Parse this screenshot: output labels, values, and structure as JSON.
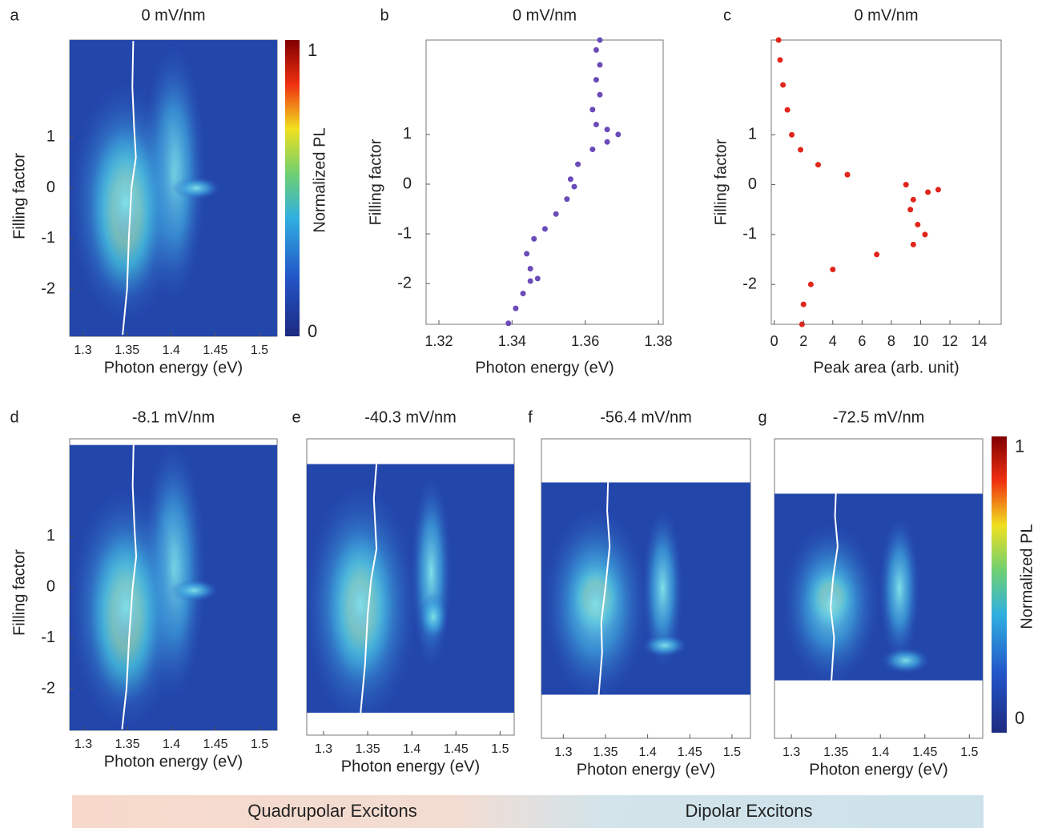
{
  "chart_data": [
    {
      "type": "heatmap",
      "label": "a",
      "title": "0 mV/nm",
      "xlabel": "Photon energy (eV)",
      "ylabel": "Filling factor",
      "xlim": [
        1.285,
        1.52
      ],
      "ylim": [
        -2.93,
        2.92
      ],
      "xticks": [
        1.3,
        1.35,
        1.4,
        1.45,
        1.5
      ],
      "yticks": [
        -2,
        -1,
        0,
        1
      ],
      "extent": [
        -2.93,
        2.92
      ],
      "trace": {
        "x": [
          1.345,
          1.35,
          1.352,
          1.355,
          1.36,
          1.358,
          1.356,
          1.357
        ],
        "y": [
          -2.9,
          -2,
          -1,
          0,
          0.6,
          1.2,
          2,
          2.9
        ]
      },
      "colorbar": {
        "label": "Normalized PL",
        "lim": [
          -0.014,
          1.04
        ],
        "ticks": [
          0,
          1
        ]
      }
    },
    {
      "type": "scatter",
      "label": "b",
      "title": "0 mV/nm",
      "xlabel": "Photon energy (eV)",
      "ylabel": "Filling factor",
      "color": "#6a4bb8",
      "xlim": [
        1.3165,
        1.3813
      ],
      "ylim": [
        -2.82,
        2.9
      ],
      "xticks": [
        1.32,
        1.34,
        1.36,
        1.38
      ],
      "yticks": [
        -2,
        -1,
        0,
        1
      ],
      "x": [
        1.339,
        1.341,
        1.343,
        1.345,
        1.347,
        1.345,
        1.344,
        1.346,
        1.349,
        1.352,
        1.355,
        1.357,
        1.356,
        1.358,
        1.362,
        1.366,
        1.369,
        1.366,
        1.363,
        1.362,
        1.364,
        1.363,
        1.364,
        1.363,
        1.364
      ],
      "values": [
        -2.8,
        -2.5,
        -2.2,
        -1.95,
        -1.9,
        -1.7,
        -1.4,
        -1.1,
        -0.9,
        -0.6,
        -0.3,
        -0.05,
        0.1,
        0.4,
        0.7,
        0.85,
        1.0,
        1.1,
        1.2,
        1.5,
        1.8,
        2.1,
        2.4,
        2.7,
        2.9
      ]
    },
    {
      "type": "scatter",
      "label": "c",
      "title": "0 mV/nm",
      "xlabel": "Peak area (arb. unit)",
      "ylabel": "Filling factor",
      "color": "#e0251b",
      "xlim": [
        -0.2,
        15.5
      ],
      "ylim": [
        -2.8,
        2.9
      ],
      "xticks": [
        0,
        2,
        4,
        6,
        8,
        10,
        12,
        14
      ],
      "yticks": [
        -2,
        -1,
        0,
        1
      ],
      "x": [
        1.9,
        2.0,
        2.5,
        4,
        7,
        9.5,
        10.3,
        9.8,
        9.3,
        9.5,
        10.5,
        11.2,
        9,
        5,
        3,
        1.8,
        1.2,
        0.9,
        0.6,
        0.4,
        0.3
      ],
      "values": [
        -2.8,
        -2.4,
        -2.0,
        -1.7,
        -1.4,
        -1.2,
        -1.0,
        -0.8,
        -0.5,
        -0.3,
        -0.15,
        -0.1,
        0.0,
        0.2,
        0.4,
        0.7,
        1.0,
        1.5,
        2.0,
        2.5,
        2.9
      ]
    },
    {
      "type": "heatmap",
      "label": "d",
      "title": "-8.1 mV/nm",
      "xlabel": "Photon energy (eV)",
      "ylabel": "Filling factor",
      "xlim": [
        1.2845,
        1.52
      ],
      "ylim": [
        -2.82,
        2.92
      ],
      "xticks": [
        1.3,
        1.35,
        1.4,
        1.45,
        1.5
      ],
      "yticks": [
        -2,
        -1,
        0,
        1
      ],
      "extent": [
        -2.82,
        2.8
      ],
      "trace": {
        "x": [
          1.344,
          1.349,
          1.352,
          1.356,
          1.36,
          1.358,
          1.356,
          1.357
        ],
        "y": [
          -2.8,
          -2,
          -1,
          0,
          0.6,
          1.2,
          2,
          2.8
        ]
      }
    },
    {
      "type": "heatmap",
      "label": "e",
      "title": "-40.3 mV/nm",
      "xlabel": "Photon energy (eV)",
      "xlim": [
        1.281,
        1.516
      ],
      "ylim": [
        -2.89,
        2.98
      ],
      "xticks": [
        1.3,
        1.35,
        1.4,
        1.45,
        1.5
      ],
      "extent": [
        -2.45,
        2.48
      ],
      "trace": {
        "x": [
          1.342,
          1.347,
          1.35,
          1.354,
          1.36,
          1.357,
          1.36
        ],
        "y": [
          -2.45,
          -1.5,
          -0.5,
          0.2,
          0.8,
          1.8,
          2.48
        ]
      }
    },
    {
      "type": "heatmap",
      "label": "f",
      "title": "-56.4 mV/nm",
      "xlabel": "Photon energy (eV)",
      "xlim": [
        1.274,
        1.522
      ],
      "ylim": [
        -2.99,
        2.92
      ],
      "xticks": [
        1.3,
        1.35,
        1.4,
        1.45,
        1.5
      ],
      "extent": [
        -2.13,
        2.06
      ],
      "trace": {
        "x": [
          1.342,
          1.346,
          1.345,
          1.35,
          1.355,
          1.352,
          1.353
        ],
        "y": [
          -2.13,
          -1.3,
          -0.7,
          0,
          0.8,
          1.5,
          2.06
        ]
      }
    },
    {
      "type": "heatmap",
      "label": "g",
      "title": "-72.5 mV/nm",
      "xlabel": "Photon energy (eV)",
      "xlim": [
        1.281,
        1.515
      ],
      "ylim": [
        -2.98,
        2.92
      ],
      "xticks": [
        1.3,
        1.35,
        1.4,
        1.45,
        1.5
      ],
      "extent": [
        -1.84,
        1.84
      ],
      "trace": {
        "x": [
          1.345,
          1.348,
          1.344,
          1.347,
          1.352,
          1.349,
          1.35
        ],
        "y": [
          -1.84,
          -1.0,
          -0.4,
          0.2,
          0.8,
          1.4,
          1.84
        ]
      },
      "colorbar": {
        "label": "Normalized PL",
        "lim": [
          -0.05,
          1.04
        ],
        "ticks": [
          0,
          1
        ]
      }
    }
  ],
  "footer": {
    "left": "Quadrupolar Excitons",
    "right": "Dipolar Excitons"
  }
}
